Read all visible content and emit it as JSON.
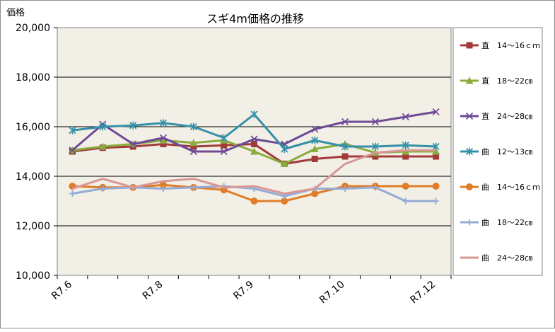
{
  "chart_data": {
    "type": "line",
    "title": "スギ4m価格の推移",
    "ylabel": "価格",
    "xlabel": "",
    "ylim": [
      10000,
      20000
    ],
    "y_ticks": [
      "10,000",
      "12,000",
      "14,000",
      "16,000",
      "18,000",
      "20,000"
    ],
    "y_tick_values": [
      10000,
      12000,
      14000,
      16000,
      18000,
      20000
    ],
    "x_count": 13,
    "x_ticks": [
      {
        "i": 0,
        "label": "R7.6"
      },
      {
        "i": 3,
        "label": "R7.8"
      },
      {
        "i": 6,
        "label": "R7.9"
      },
      {
        "i": 9,
        "label": "R7.10"
      },
      {
        "i": 12,
        "label": "R7.12"
      }
    ],
    "grid": true,
    "plot_background": "#f2f0e6",
    "legend_position": "right",
    "series": [
      {
        "name": "直　14～16ｃｍ",
        "color": "#a33a3a",
        "marker": "square",
        "values": [
          15000,
          15150,
          15200,
          15300,
          15200,
          15250,
          15300,
          14500,
          14700,
          14800,
          14800,
          14800,
          14800
        ]
      },
      {
        "name": "直　18～22㎝",
        "color": "#8aac3e",
        "marker": "triangle",
        "values": [
          15050,
          15200,
          15300,
          15450,
          15350,
          15450,
          15000,
          14500,
          15100,
          15300,
          14950,
          15000,
          15000
        ]
      },
      {
        "name": "直　24～28㎝",
        "color": "#6e4a96",
        "marker": "x",
        "values": [
          15050,
          16100,
          15300,
          15550,
          15000,
          15000,
          15500,
          15300,
          15900,
          16200,
          16200,
          16400,
          16600
        ]
      },
      {
        "name": "曲　12～13㎝",
        "color": "#3590a8",
        "marker": "star",
        "values": [
          15850,
          16000,
          16050,
          16150,
          16000,
          15550,
          16500,
          15100,
          15450,
          15200,
          15200,
          15250,
          15200
        ]
      },
      {
        "name": "曲　14～16ｃｍ",
        "color": "#e07c28",
        "marker": "circle",
        "values": [
          13600,
          13550,
          13550,
          13650,
          13550,
          13450,
          13000,
          13000,
          13300,
          13600,
          13600,
          13600,
          13600
        ]
      },
      {
        "name": "曲　18～22㎝",
        "color": "#94abd6",
        "marker": "plus",
        "values": [
          13300,
          13500,
          13550,
          13500,
          13550,
          13600,
          13500,
          13200,
          13500,
          13500,
          13550,
          13000,
          13000
        ]
      },
      {
        "name": "曲　24～28㎝",
        "color": "#d99694",
        "marker": "none",
        "values": [
          13500,
          13900,
          13550,
          13800,
          13900,
          13550,
          13600,
          13300,
          13500,
          14500,
          14950,
          15050,
          15050
        ]
      }
    ]
  }
}
